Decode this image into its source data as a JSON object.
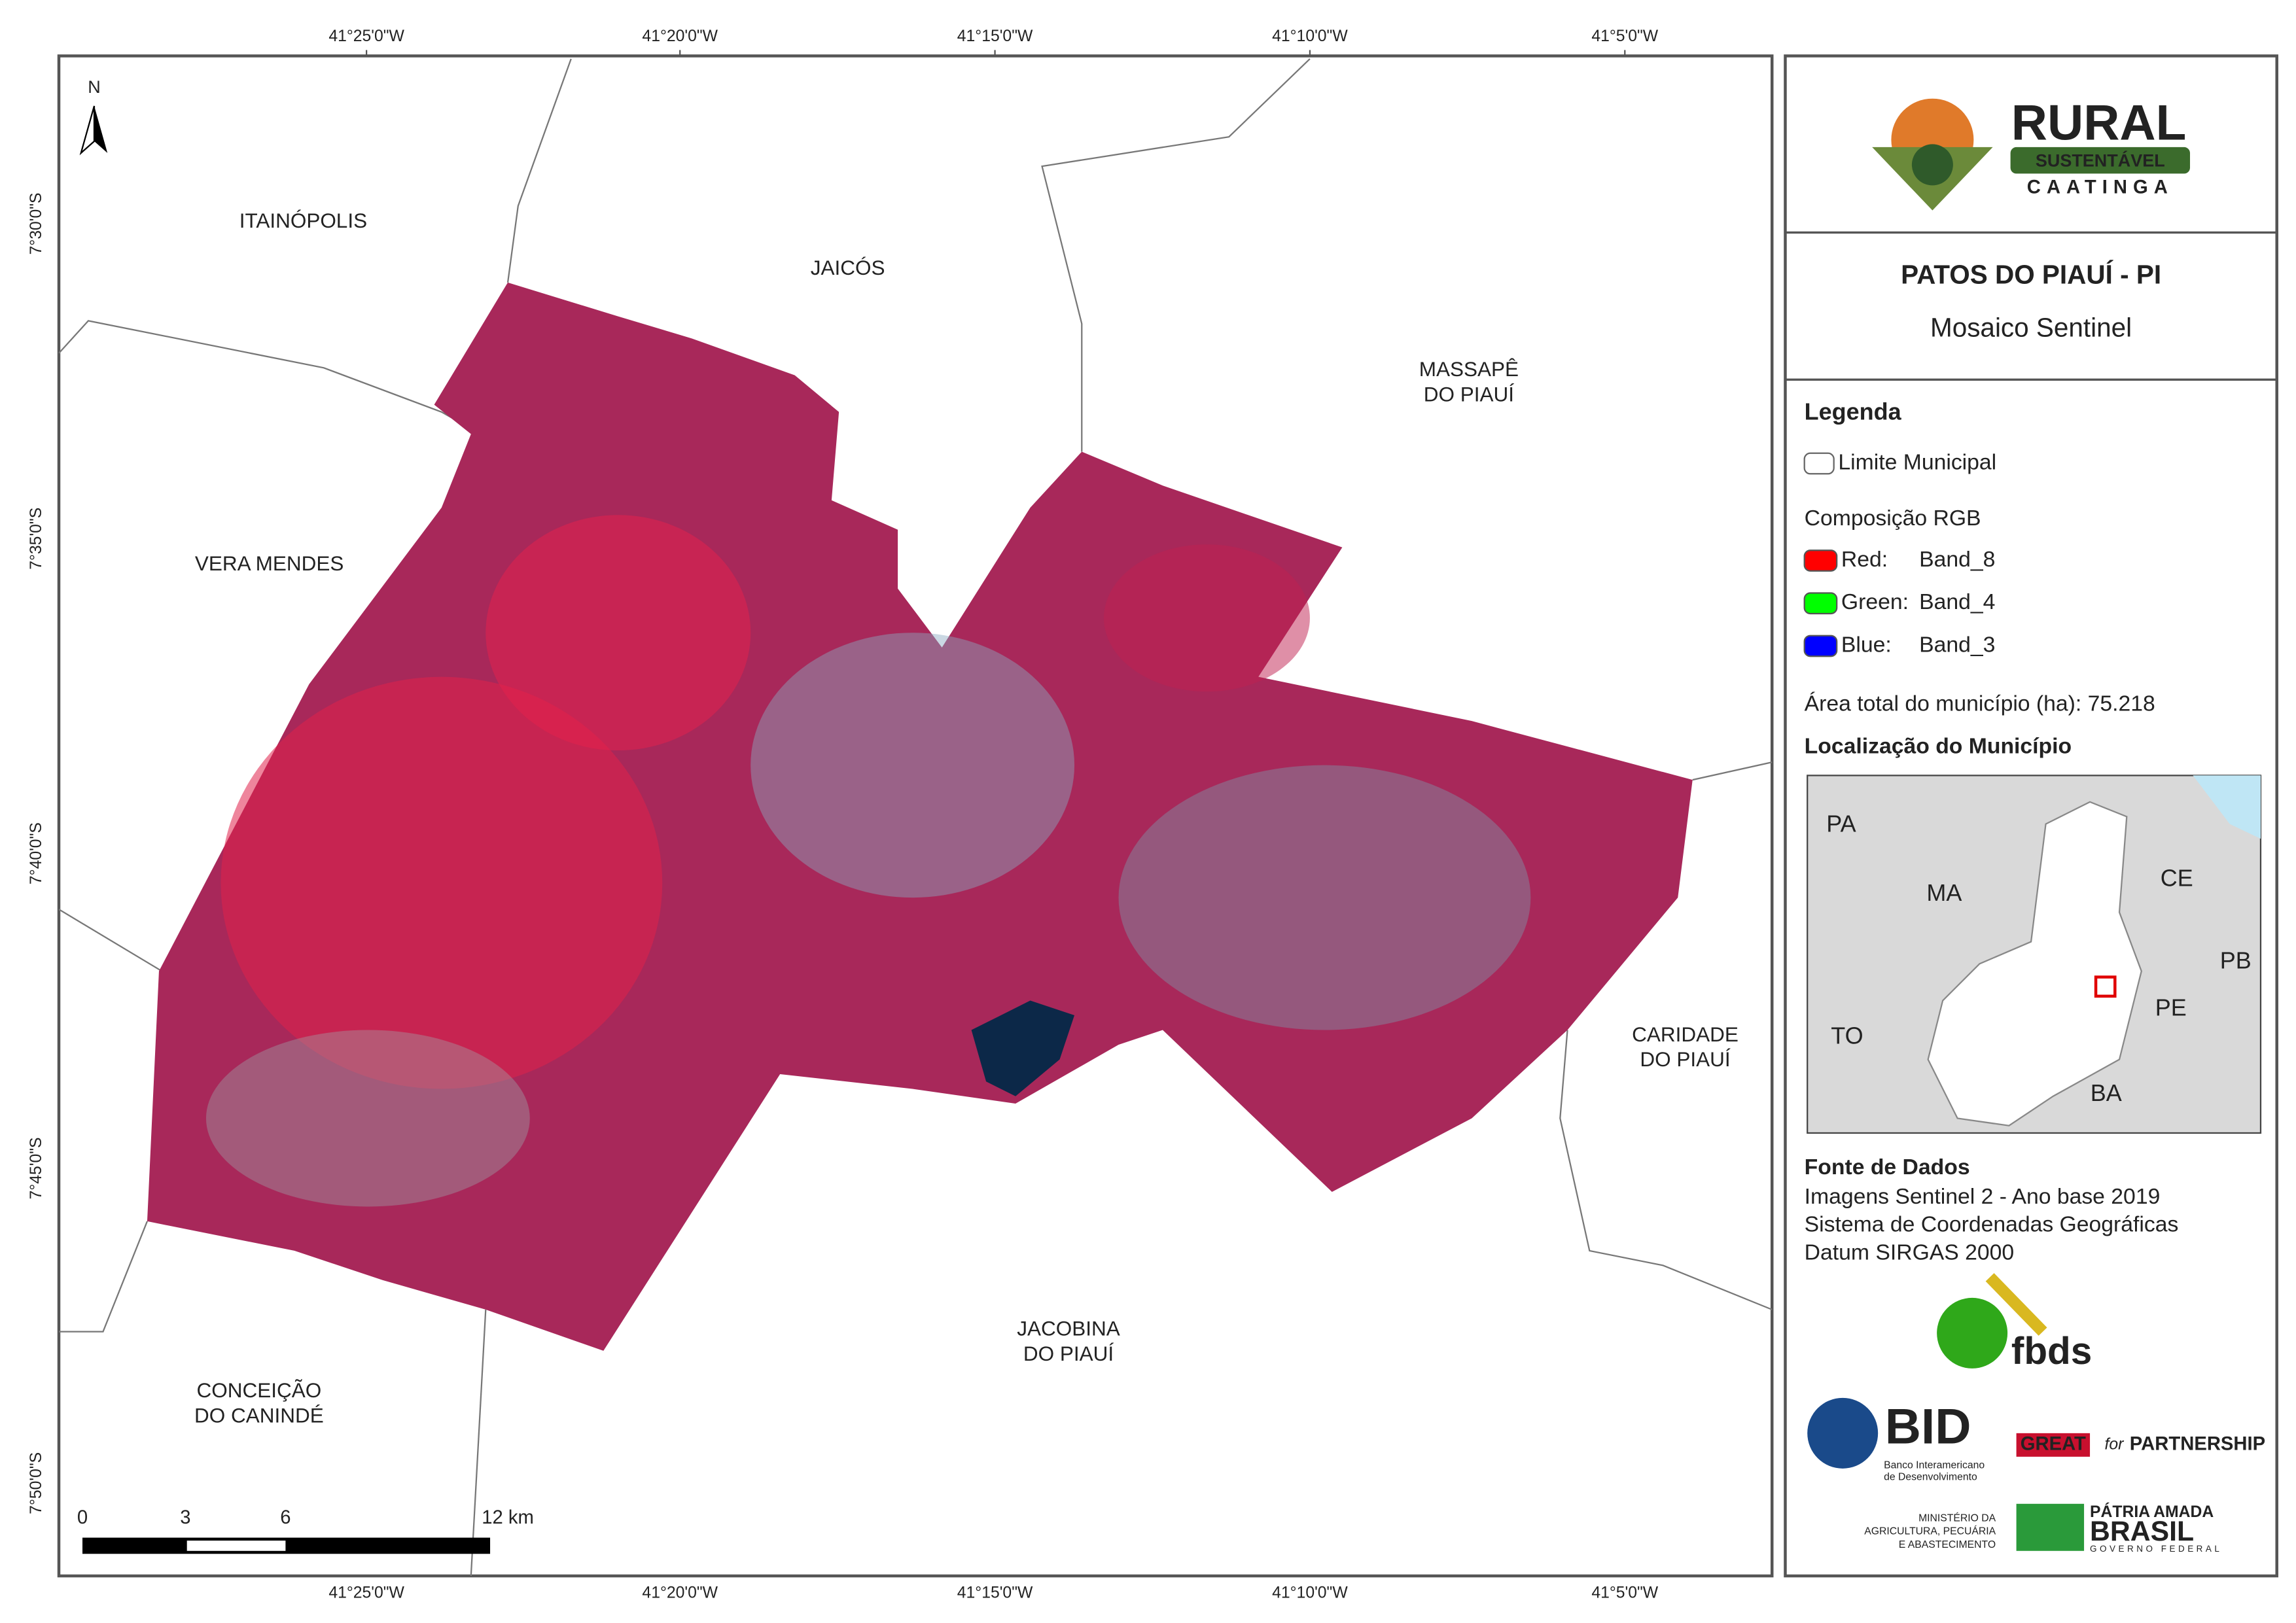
{
  "map_frame": {
    "top_longitudes": [
      "41°25'0\"W",
      "41°20'0\"W",
      "41°15'0\"W",
      "41°10'0\"W",
      "41°5'0\"W"
    ],
    "bottom_longitudes": [
      "41°25'0\"W",
      "41°20'0\"W",
      "41°15'0\"W",
      "41°10'0\"W",
      "41°5'0\"W"
    ],
    "left_latitudes": [
      "7°30'0\"S",
      "7°35'0\"S",
      "7°40'0\"S",
      "7°45'0\"S",
      "7°50'0\"S"
    ],
    "north_arrow": "N",
    "municipalities": [
      {
        "lines": [
          "ITAINÓPOLIS"
        ]
      },
      {
        "lines": [
          "JAICÓS"
        ]
      },
      {
        "lines": [
          "MASSAPÊ",
          "DO PIAUÍ"
        ]
      },
      {
        "lines": [
          "VERA MENDES"
        ]
      },
      {
        "lines": [
          "CARIDADE",
          "DO PIAUÍ"
        ]
      },
      {
        "lines": [
          "CONCEIÇÃO",
          "DO CANINDÉ"
        ]
      },
      {
        "lines": [
          "JACOBINA",
          "DO PIAUÍ"
        ]
      }
    ],
    "scale_bar": [
      "0",
      "3",
      "6",
      "12 km"
    ]
  },
  "sidebar": {
    "logo": {
      "title": "RURAL",
      "badge": "SUSTENTÁVEL",
      "subtitle": "CAATINGA"
    },
    "header": {
      "title": "PATOS DO PIAUÍ - PI",
      "subtitle": "Mosaico Sentinel"
    },
    "legend": {
      "title": "Legenda",
      "boundary": "Limite Municipal",
      "composition": "Composição RGB",
      "bands": [
        {
          "channel": "Red:",
          "band": "Band_8",
          "color": "#ff0000"
        },
        {
          "channel": "Green:",
          "band": "Band_4",
          "color": "#00ff00"
        },
        {
          "channel": "Blue:",
          "band": "Band_3",
          "color": "#0000ff"
        }
      ],
      "area": "Área total do município (ha): 75.218"
    },
    "location": {
      "title": "Localização do Município",
      "states": [
        "PA",
        "MA",
        "CE",
        "PB",
        "PE",
        "TO",
        "BA"
      ]
    },
    "sources": {
      "title": "Fonte de Dados",
      "lines": [
        "Imagens Sentinel 2 - Ano base 2019",
        "Sistema de Coordenadas Geográficas",
        "Datum SIRGAS 2000"
      ]
    },
    "logos": {
      "fbds": "fbds",
      "bid": "BID",
      "bid_name": [
        "Banco Interamericano",
        "de Desenvolvimento"
      ],
      "great": "GREAT",
      "for": "for",
      "partnership": "PARTNERSHIP",
      "ministry": [
        "MINISTÉRIO DA",
        "AGRICULTURA, PECUÁRIA",
        "E ABASTECIMENTO"
      ],
      "patria": "PÁTRIA AMADA",
      "brasil": "BRASIL",
      "gov": "GOVERNO FEDERAL"
    }
  }
}
